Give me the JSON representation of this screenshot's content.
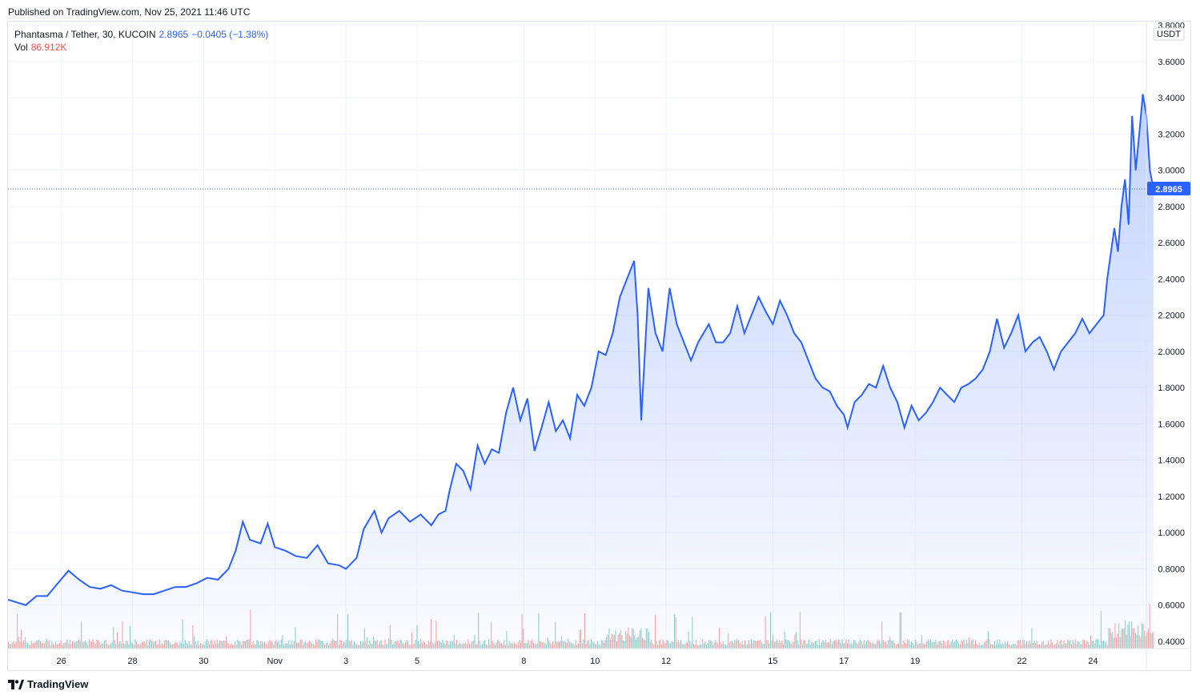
{
  "header": {
    "published": "Published on TradingView.com, Nov 25, 2021 11:46 UTC"
  },
  "legend": {
    "symbol": "Phantasma / Tether, 30, KUCOIN",
    "price": "2.8965",
    "change": "−0.0405 (−1.38%)",
    "vol_label": "Vol",
    "vol_value": "86.912K"
  },
  "footer": {
    "logo_text": "TradingView"
  },
  "colors": {
    "line": "#2962ff",
    "vol_up": "#26a69a",
    "vol_down": "#ef5350",
    "grid": "#f0f3fa",
    "price_tag_bg": "#2962ff"
  },
  "chart_data": {
    "type": "area",
    "currency": "USDT",
    "current_price": 2.8965,
    "current_price_label": "2.8965",
    "ylim": [
      0.36,
      3.82
    ],
    "y_ticks": [
      0.4,
      0.6,
      0.8,
      1.0,
      1.2,
      1.4,
      1.6,
      1.8,
      2.0,
      2.2,
      2.4,
      2.6,
      2.8,
      3.0,
      3.2,
      3.4,
      3.6,
      3.8
    ],
    "y_tick_labels": [
      "0.4000",
      "0.6000",
      "0.8000",
      "1.0000",
      "1.2000",
      "1.4000",
      "1.6000",
      "1.8000",
      "2.0000",
      "2.2000",
      "2.4000",
      "2.6000",
      "2.8000",
      "3.0000",
      "3.2000",
      "3.4000",
      "3.6000",
      "3.8000"
    ],
    "xlim": [
      -0.5,
      31.5
    ],
    "x_ticks": [
      {
        "x": 1,
        "label": "26"
      },
      {
        "x": 3,
        "label": "28"
      },
      {
        "x": 5,
        "label": "30"
      },
      {
        "x": 7,
        "label": "Nov"
      },
      {
        "x": 9,
        "label": "3"
      },
      {
        "x": 11,
        "label": "5"
      },
      {
        "x": 14,
        "label": "8"
      },
      {
        "x": 16,
        "label": "10"
      },
      {
        "x": 18,
        "label": "12"
      },
      {
        "x": 21,
        "label": "15"
      },
      {
        "x": 23,
        "label": "17"
      },
      {
        "x": 25,
        "label": "19"
      },
      {
        "x": 28,
        "label": "22"
      },
      {
        "x": 30,
        "label": "24"
      }
    ],
    "series": [
      {
        "values": [
          [
            -0.5,
            0.63
          ],
          [
            0.0,
            0.6
          ],
          [
            0.3,
            0.65
          ],
          [
            0.6,
            0.65
          ],
          [
            0.9,
            0.72
          ],
          [
            1.2,
            0.79
          ],
          [
            1.5,
            0.74
          ],
          [
            1.8,
            0.7
          ],
          [
            2.1,
            0.69
          ],
          [
            2.4,
            0.71
          ],
          [
            2.7,
            0.68
          ],
          [
            3.0,
            0.67
          ],
          [
            3.3,
            0.66
          ],
          [
            3.6,
            0.66
          ],
          [
            3.9,
            0.68
          ],
          [
            4.2,
            0.7
          ],
          [
            4.5,
            0.7
          ],
          [
            4.8,
            0.72
          ],
          [
            5.1,
            0.75
          ],
          [
            5.4,
            0.74
          ],
          [
            5.7,
            0.8
          ],
          [
            5.9,
            0.9
          ],
          [
            6.1,
            1.06
          ],
          [
            6.3,
            0.96
          ],
          [
            6.6,
            0.94
          ],
          [
            6.8,
            1.05
          ],
          [
            7.0,
            0.92
          ],
          [
            7.3,
            0.9
          ],
          [
            7.6,
            0.87
          ],
          [
            7.9,
            0.86
          ],
          [
            8.2,
            0.93
          ],
          [
            8.5,
            0.83
          ],
          [
            8.8,
            0.82
          ],
          [
            9.0,
            0.8
          ],
          [
            9.3,
            0.86
          ],
          [
            9.5,
            1.02
          ],
          [
            9.8,
            1.12
          ],
          [
            10.0,
            1.0
          ],
          [
            10.2,
            1.08
          ],
          [
            10.5,
            1.12
          ],
          [
            10.8,
            1.06
          ],
          [
            11.1,
            1.1
          ],
          [
            11.4,
            1.04
          ],
          [
            11.6,
            1.1
          ],
          [
            11.8,
            1.12
          ],
          [
            11.9,
            1.22
          ],
          [
            12.1,
            1.38
          ],
          [
            12.3,
            1.34
          ],
          [
            12.5,
            1.24
          ],
          [
            12.7,
            1.48
          ],
          [
            12.9,
            1.38
          ],
          [
            13.1,
            1.46
          ],
          [
            13.3,
            1.44
          ],
          [
            13.5,
            1.66
          ],
          [
            13.7,
            1.8
          ],
          [
            13.9,
            1.62
          ],
          [
            14.1,
            1.74
          ],
          [
            14.3,
            1.45
          ],
          [
            14.5,
            1.58
          ],
          [
            14.7,
            1.72
          ],
          [
            14.9,
            1.56
          ],
          [
            15.1,
            1.62
          ],
          [
            15.3,
            1.52
          ],
          [
            15.5,
            1.76
          ],
          [
            15.7,
            1.7
          ],
          [
            15.9,
            1.8
          ],
          [
            16.1,
            2.0
          ],
          [
            16.3,
            1.98
          ],
          [
            16.5,
            2.1
          ],
          [
            16.7,
            2.3
          ],
          [
            16.9,
            2.4
          ],
          [
            17.1,
            2.5
          ],
          [
            17.2,
            2.2
          ],
          [
            17.3,
            1.62
          ],
          [
            17.5,
            2.35
          ],
          [
            17.7,
            2.1
          ],
          [
            17.9,
            2.0
          ],
          [
            18.1,
            2.35
          ],
          [
            18.3,
            2.15
          ],
          [
            18.5,
            2.05
          ],
          [
            18.7,
            1.95
          ],
          [
            18.9,
            2.05
          ],
          [
            19.2,
            2.15
          ],
          [
            19.4,
            2.05
          ],
          [
            19.6,
            2.05
          ],
          [
            19.8,
            2.1
          ],
          [
            20.0,
            2.25
          ],
          [
            20.2,
            2.1
          ],
          [
            20.4,
            2.2
          ],
          [
            20.6,
            2.3
          ],
          [
            20.8,
            2.22
          ],
          [
            21.0,
            2.15
          ],
          [
            21.2,
            2.28
          ],
          [
            21.4,
            2.2
          ],
          [
            21.6,
            2.1
          ],
          [
            21.8,
            2.05
          ],
          [
            22.0,
            1.95
          ],
          [
            22.2,
            1.85
          ],
          [
            22.4,
            1.8
          ],
          [
            22.6,
            1.78
          ],
          [
            22.8,
            1.7
          ],
          [
            23.0,
            1.65
          ],
          [
            23.1,
            1.58
          ],
          [
            23.3,
            1.72
          ],
          [
            23.5,
            1.76
          ],
          [
            23.7,
            1.82
          ],
          [
            23.9,
            1.8
          ],
          [
            24.1,
            1.92
          ],
          [
            24.3,
            1.8
          ],
          [
            24.5,
            1.72
          ],
          [
            24.7,
            1.58
          ],
          [
            24.9,
            1.7
          ],
          [
            25.1,
            1.62
          ],
          [
            25.3,
            1.66
          ],
          [
            25.5,
            1.72
          ],
          [
            25.7,
            1.8
          ],
          [
            25.9,
            1.76
          ],
          [
            26.1,
            1.72
          ],
          [
            26.3,
            1.8
          ],
          [
            26.5,
            1.82
          ],
          [
            26.7,
            1.85
          ],
          [
            26.9,
            1.9
          ],
          [
            27.1,
            2.0
          ],
          [
            27.3,
            2.18
          ],
          [
            27.5,
            2.02
          ],
          [
            27.7,
            2.1
          ],
          [
            27.9,
            2.2
          ],
          [
            28.1,
            2.0
          ],
          [
            28.3,
            2.05
          ],
          [
            28.5,
            2.08
          ],
          [
            28.7,
            2.0
          ],
          [
            28.9,
            1.9
          ],
          [
            29.1,
            2.0
          ],
          [
            29.3,
            2.05
          ],
          [
            29.5,
            2.1
          ],
          [
            29.7,
            2.18
          ],
          [
            29.9,
            2.1
          ],
          [
            30.1,
            2.15
          ],
          [
            30.3,
            2.2
          ],
          [
            30.4,
            2.4
          ],
          [
            30.6,
            2.68
          ],
          [
            30.7,
            2.55
          ],
          [
            30.8,
            2.8
          ],
          [
            30.9,
            2.95
          ],
          [
            31.0,
            2.7
          ],
          [
            31.1,
            3.3
          ],
          [
            31.2,
            3.0
          ],
          [
            31.3,
            3.2
          ],
          [
            31.4,
            3.42
          ],
          [
            31.5,
            3.3
          ],
          [
            31.6,
            3.0
          ],
          [
            31.7,
            2.8965
          ]
        ]
      }
    ]
  }
}
